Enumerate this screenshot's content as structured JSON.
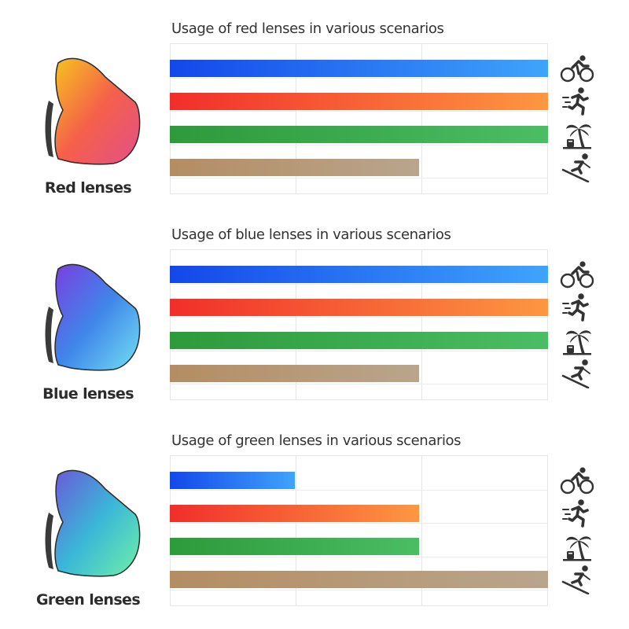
{
  "colors": {
    "scenario_bars": [
      [
        "#1347ea",
        "#3fa4fb"
      ],
      [
        "#f12e2a",
        "#fd9741"
      ],
      [
        "#2d9a3b",
        "#4bbd64"
      ],
      [
        "#b48d62",
        "#b9a58d"
      ]
    ],
    "icon": "#333333"
  },
  "scenario_icons": [
    "cycling-icon",
    "running-icon",
    "beach-icon",
    "skiing-icon"
  ],
  "chart_data": [
    {
      "type": "bar",
      "title": "Usage of red lenses in various scenarios",
      "lens_label": "Red lenses",
      "lens_colors": [
        "#f6c21f",
        "#f5604a",
        "#e2508a"
      ],
      "categories": [
        "cycling",
        "running",
        "beach",
        "skiing"
      ],
      "values": [
        100,
        100,
        100,
        66
      ],
      "xlim": [
        0,
        100
      ]
    },
    {
      "type": "bar",
      "title": "Usage of blue lenses in various scenarios",
      "lens_label": "Blue lenses",
      "lens_colors": [
        "#7a3fe0",
        "#3f86ea",
        "#74e0f2"
      ],
      "categories": [
        "cycling",
        "running",
        "beach",
        "skiing"
      ],
      "values": [
        100,
        100,
        100,
        66
      ],
      "xlim": [
        0,
        100
      ]
    },
    {
      "type": "bar",
      "title": "Usage of green lenses in various scenarios",
      "lens_label": "Green lenses",
      "lens_colors": [
        "#6a5ad8",
        "#3ab7d8",
        "#6ff0a8"
      ],
      "categories": [
        "cycling",
        "running",
        "beach",
        "skiing"
      ],
      "values": [
        33,
        66,
        66,
        100
      ],
      "xlim": [
        0,
        100
      ]
    }
  ]
}
